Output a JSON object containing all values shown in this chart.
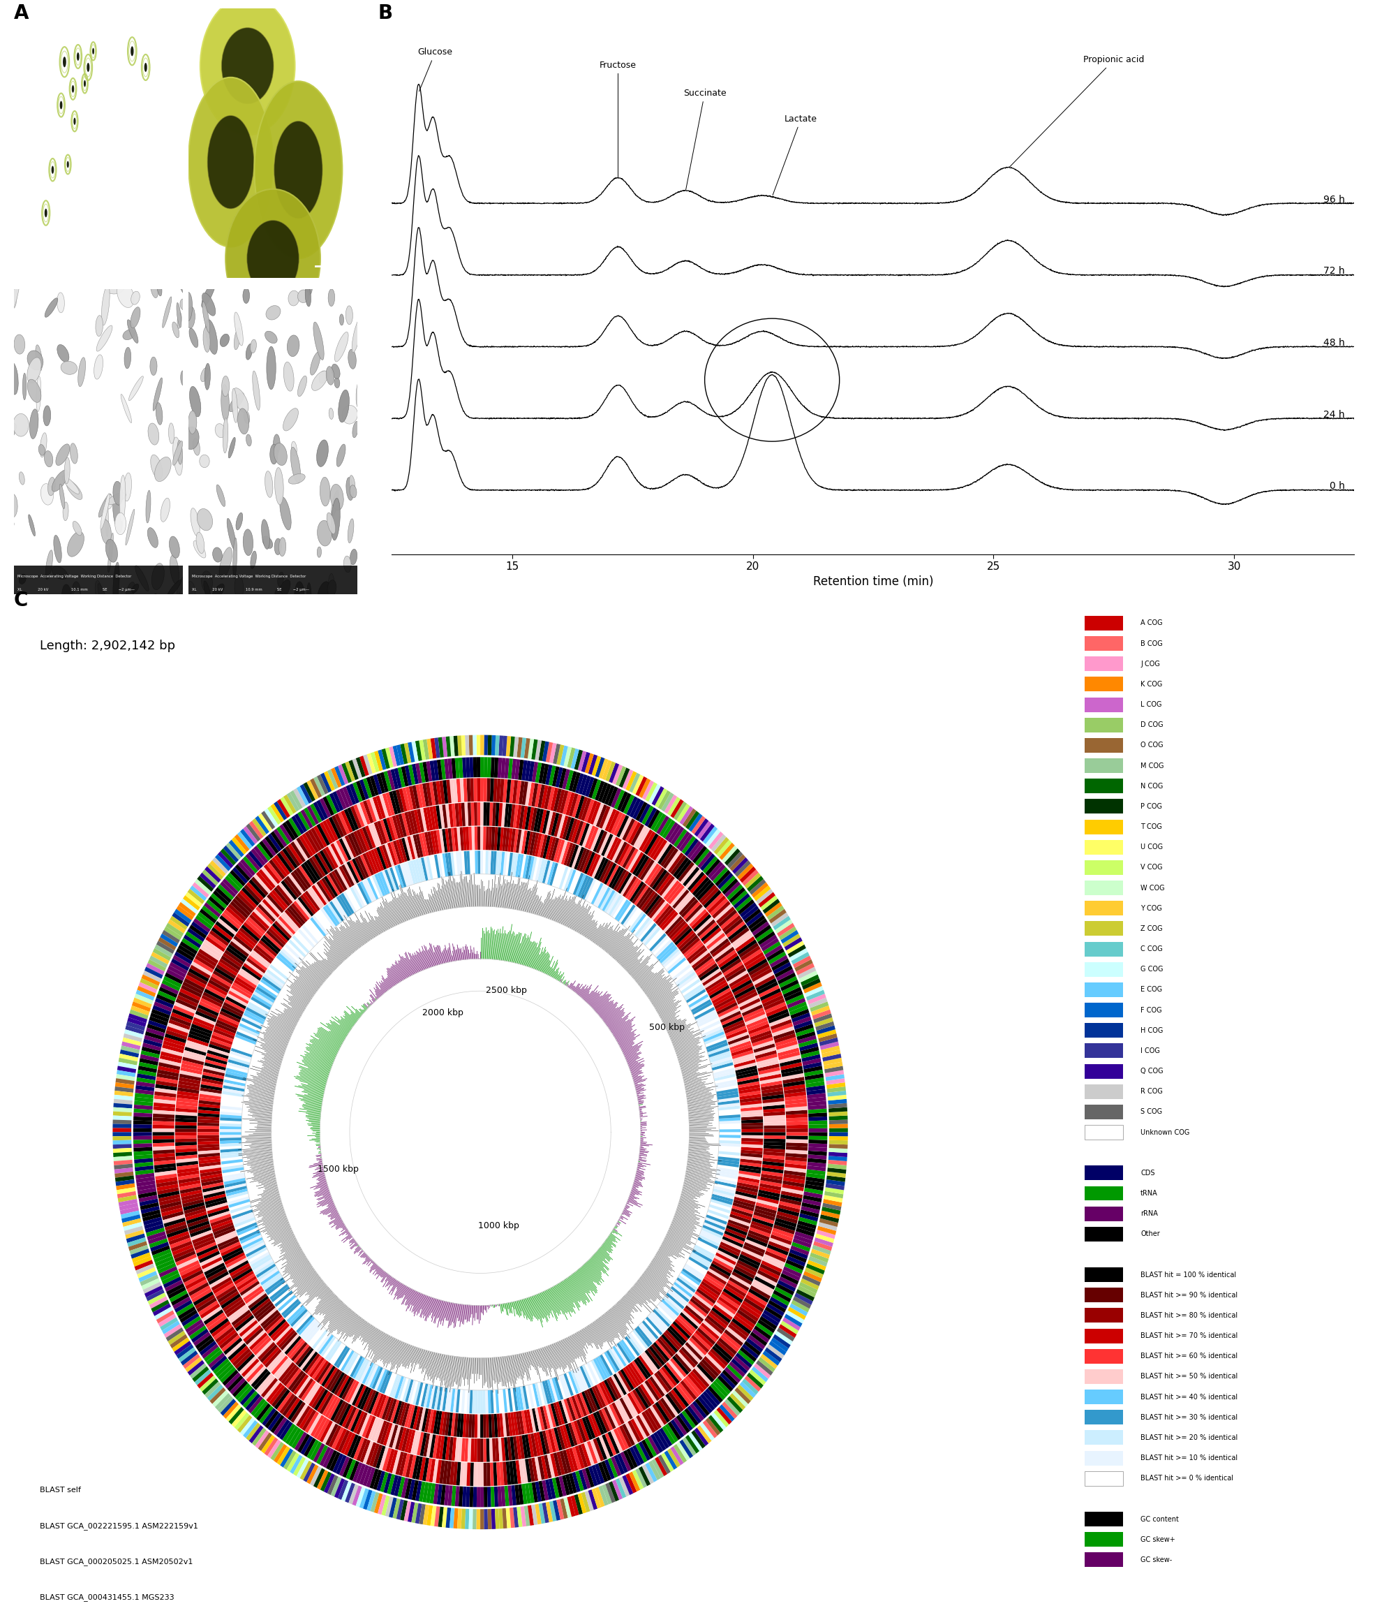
{
  "panel_A_label": "A",
  "panel_B_label": "B",
  "panel_C_label": "C",
  "panel_B_xlabel": "Retention time (min)",
  "panel_B_xticks": [
    15,
    20,
    25,
    30
  ],
  "panel_B_time_labels": [
    "96 h",
    "72 h",
    "48 h",
    "24 h",
    "0 h"
  ],
  "panel_C_length_text": "Length: 2,902,142 bp",
  "panel_C_blast_labels": [
    "BLAST self",
    "BLAST GCA_002221595.1 ASM222159v1",
    "BLAST GCA_000205025.1 ASM20502v1",
    "BLAST GCA_000431455.1 MGS233"
  ],
  "legend_cog_entries": [
    {
      "label": "A COG",
      "color": "#CC0000"
    },
    {
      "label": "B COG",
      "color": "#FF6666"
    },
    {
      "label": "J COG",
      "color": "#FF99CC"
    },
    {
      "label": "K COG",
      "color": "#FF8800"
    },
    {
      "label": "L COG",
      "color": "#CC66CC"
    },
    {
      "label": "D COG",
      "color": "#99CC66"
    },
    {
      "label": "O COG",
      "color": "#996633"
    },
    {
      "label": "M COG",
      "color": "#99CC99"
    },
    {
      "label": "N COG",
      "color": "#006600"
    },
    {
      "label": "P COG",
      "color": "#003300"
    },
    {
      "label": "T COG",
      "color": "#FFCC00"
    },
    {
      "label": "U COG",
      "color": "#FFFF66"
    },
    {
      "label": "V COG",
      "color": "#CCFF66"
    },
    {
      "label": "W COG",
      "color": "#CCFFCC"
    },
    {
      "label": "Y COG",
      "color": "#FFCC33"
    },
    {
      "label": "Z COG",
      "color": "#CCCC33"
    },
    {
      "label": "C COG",
      "color": "#66CCCC"
    },
    {
      "label": "G COG",
      "color": "#CCFFFF"
    },
    {
      "label": "E COG",
      "color": "#66CCFF"
    },
    {
      "label": "F COG",
      "color": "#0066CC"
    },
    {
      "label": "H COG",
      "color": "#003399"
    },
    {
      "label": "I COG",
      "color": "#333399"
    },
    {
      "label": "Q COG",
      "color": "#330099"
    },
    {
      "label": "R COG",
      "color": "#CCCCCC"
    },
    {
      "label": "S COG",
      "color": "#666666"
    },
    {
      "label": "Unknown COG",
      "color": "#FFFFFF"
    }
  ],
  "legend_gene_entries": [
    {
      "label": "CDS",
      "color": "#000066"
    },
    {
      "label": "tRNA",
      "color": "#009900"
    },
    {
      "label": "rRNA",
      "color": "#660066"
    },
    {
      "label": "Other",
      "color": "#000000"
    }
  ],
  "legend_blast_entries": [
    {
      "label": "BLAST hit = 100 % identical",
      "color": "#000000"
    },
    {
      "label": "BLAST hit >= 90 % identical",
      "color": "#660000"
    },
    {
      "label": "BLAST hit >= 80 % identical",
      "color": "#990000"
    },
    {
      "label": "BLAST hit >= 70 % identical",
      "color": "#CC0000"
    },
    {
      "label": "BLAST hit >= 60 % identical",
      "color": "#FF3333"
    },
    {
      "label": "BLAST hit >= 50 % identical",
      "color": "#FFCCCC"
    },
    {
      "label": "BLAST hit >= 40 % identical",
      "color": "#66CCFF"
    },
    {
      "label": "BLAST hit >= 30 % identical",
      "color": "#3399CC"
    },
    {
      "label": "BLAST hit >= 20 % identical",
      "color": "#CCEEFF"
    },
    {
      "label": "BLAST hit >= 10 % identical",
      "color": "#E8F4FF"
    },
    {
      "label": "BLAST hit >= 0 % identical",
      "color": "#FFFFFF"
    }
  ],
  "legend_gc_entries": [
    {
      "label": "GC content",
      "color": "#000000"
    },
    {
      "label": "GC skew+",
      "color": "#009900"
    },
    {
      "label": "GC skew-",
      "color": "#660066"
    }
  ],
  "background_color": "#FFFFFF",
  "img_top_left_bg": "#2a3020",
  "img_top_right_bg": "#1a2010",
  "img_bot_left_bg": "#888888",
  "img_bot_right_bg": "#909090"
}
